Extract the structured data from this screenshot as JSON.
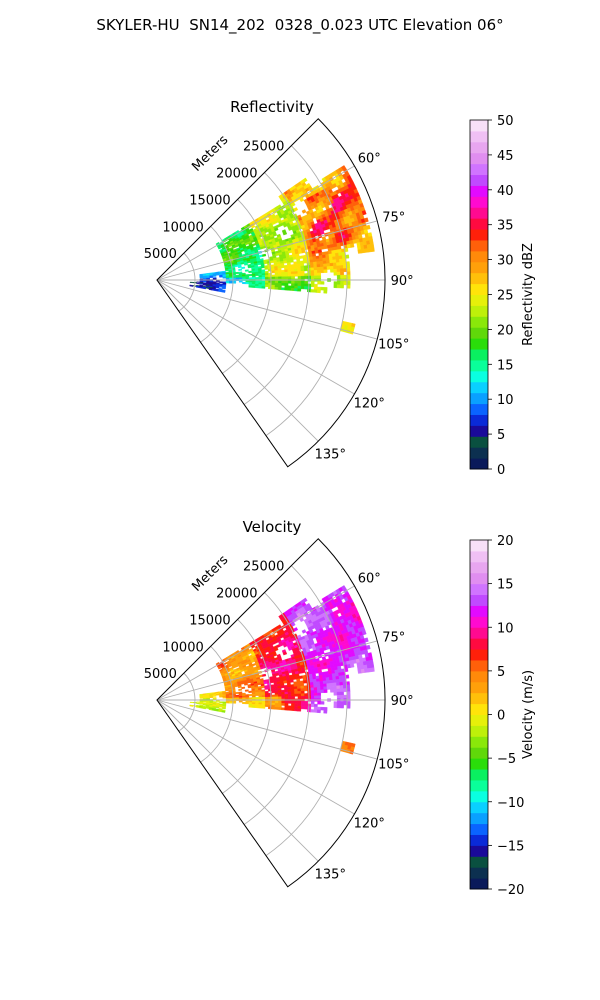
{
  "figure": {
    "title": "SKYLER-HU  SN14_202  0328_0.023 UTC Elevation 06°"
  },
  "chart_data": [
    {
      "type": "heatmap",
      "title": "Reflectivity",
      "projection": "polar sector",
      "angle_range_deg": [
        45,
        145
      ],
      "range_label": "Meters",
      "range_ticks": [
        "5000",
        "10000",
        "15000",
        "20000",
        "25000"
      ],
      "angle_ticks": [
        "60°",
        "75°",
        "90°",
        "105°",
        "120°",
        "135°"
      ],
      "grid": true,
      "colorbar": {
        "label": "Reflectivity dBZ",
        "range": [
          0,
          50
        ],
        "ticks": [
          "0",
          "5",
          "10",
          "15",
          "20",
          "25",
          "30",
          "35",
          "40",
          "45",
          "50"
        ],
        "colors": [
          "#0a1a5a",
          "#0c3050",
          "#0a5040",
          "#1a0a9a",
          "#0a2ad8",
          "#0a64ff",
          "#0aa0ff",
          "#0ad0ff",
          "#0affe0",
          "#0aff9a",
          "#0af060",
          "#2add0a",
          "#60d80a",
          "#8ae80a",
          "#bef00a",
          "#e6f00a",
          "#ffe40a",
          "#ffc00a",
          "#ffa00a",
          "#ff8a0a",
          "#ff600a",
          "#ff200a",
          "#ff0a40",
          "#ff0a90",
          "#ff0ad0",
          "#e20aff",
          "#c04aff",
          "#d074ff",
          "#e08ef0",
          "#e8a6f0",
          "#f0c0f4",
          "#f8e0f8"
        ]
      },
      "field_note": "echoes concentrated between ~60° and ~100°, ranges ~4000–28000 m; strongest 30–40 dBZ near 65–80° at 20000–28000 m"
    },
    {
      "type": "heatmap",
      "title": "Velocity",
      "projection": "polar sector",
      "angle_range_deg": [
        45,
        145
      ],
      "range_label": "Meters",
      "range_ticks": [
        "5000",
        "10000",
        "15000",
        "20000",
        "25000"
      ],
      "angle_ticks": [
        "60°",
        "75°",
        "90°",
        "105°",
        "120°",
        "135°"
      ],
      "grid": true,
      "colorbar": {
        "label": "Velocity (m/s)",
        "range": [
          -20,
          20
        ],
        "ticks": [
          "−20",
          "−15",
          "−10",
          "−5",
          "0",
          "5",
          "10",
          "15",
          "20"
        ],
        "colors": [
          "#0a1a5a",
          "#0c3050",
          "#0a5040",
          "#1a0a9a",
          "#0a2ad8",
          "#0a64ff",
          "#0aa0ff",
          "#0ad0ff",
          "#0affe0",
          "#0aff9a",
          "#0af060",
          "#2add0a",
          "#60d80a",
          "#8ae80a",
          "#bef00a",
          "#e6f00a",
          "#ffe40a",
          "#ffc00a",
          "#ffa00a",
          "#ff8a0a",
          "#ff600a",
          "#ff200a",
          "#ff0a40",
          "#ff0a90",
          "#ff0ad0",
          "#e20aff",
          "#c04aff",
          "#d074ff",
          "#e08ef0",
          "#e8a6f0",
          "#f0c0f4",
          "#f8e0f8"
        ]
      },
      "field_note": "near ranges 0 to +5 m/s (yellow-green), mid ranges +5 to +10 m/s (orange-red), far ranges +12 to +15 m/s (magenta-purple)"
    }
  ]
}
